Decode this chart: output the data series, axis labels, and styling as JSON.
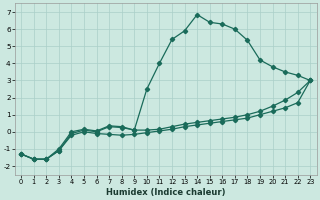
{
  "xlabel": "Humidex (Indice chaleur)",
  "background_color": "#cce8e0",
  "grid_color": "#aacfc8",
  "line_color": "#1a6b5a",
  "xlim": [
    -0.5,
    23.5
  ],
  "ylim": [
    -2.5,
    7.5
  ],
  "xticks": [
    0,
    1,
    2,
    3,
    4,
    5,
    6,
    7,
    8,
    9,
    10,
    11,
    12,
    13,
    14,
    15,
    16,
    17,
    18,
    19,
    20,
    21,
    22,
    23
  ],
  "yticks": [
    -2,
    -1,
    0,
    1,
    2,
    3,
    4,
    5,
    6,
    7
  ],
  "line_bell_x": [
    0,
    1,
    2,
    3,
    4,
    5,
    6,
    7,
    8,
    9,
    10,
    11,
    12,
    13,
    14,
    15,
    16,
    17,
    18,
    19,
    20,
    21,
    22,
    23
  ],
  "line_bell_y": [
    -1.3,
    -1.6,
    -1.6,
    -1.1,
    -0.1,
    0.1,
    0.0,
    0.3,
    0.25,
    0.1,
    2.5,
    4.0,
    5.4,
    5.9,
    6.85,
    6.4,
    6.3,
    6.0,
    5.35,
    4.2,
    3.8,
    3.5,
    3.3,
    3.0
  ],
  "line_upper_x": [
    0,
    1,
    2,
    3,
    4,
    5,
    6,
    7,
    8,
    9,
    10,
    11,
    12,
    13,
    14,
    15,
    16,
    17,
    18,
    19,
    20,
    21,
    22,
    23
  ],
  "line_upper_y": [
    -1.3,
    -1.6,
    -1.6,
    -1.0,
    -0.0,
    0.15,
    0.05,
    0.35,
    0.3,
    0.1,
    0.1,
    0.15,
    0.3,
    0.45,
    0.55,
    0.65,
    0.75,
    0.85,
    1.0,
    1.2,
    1.5,
    1.85,
    2.3,
    3.0
  ],
  "line_lower_x": [
    0,
    1,
    2,
    3,
    4,
    5,
    6,
    7,
    8,
    9,
    10,
    11,
    12,
    13,
    14,
    15,
    16,
    17,
    18,
    19,
    20,
    21,
    22,
    23
  ],
  "line_lower_y": [
    -1.3,
    -1.6,
    -1.6,
    -1.1,
    -0.2,
    0.0,
    -0.1,
    -0.15,
    -0.2,
    -0.15,
    -0.05,
    0.05,
    0.15,
    0.3,
    0.4,
    0.5,
    0.6,
    0.7,
    0.8,
    1.0,
    1.2,
    1.4,
    1.7,
    3.0
  ],
  "marker": "D",
  "markersize": 2.2,
  "linewidth": 0.9
}
